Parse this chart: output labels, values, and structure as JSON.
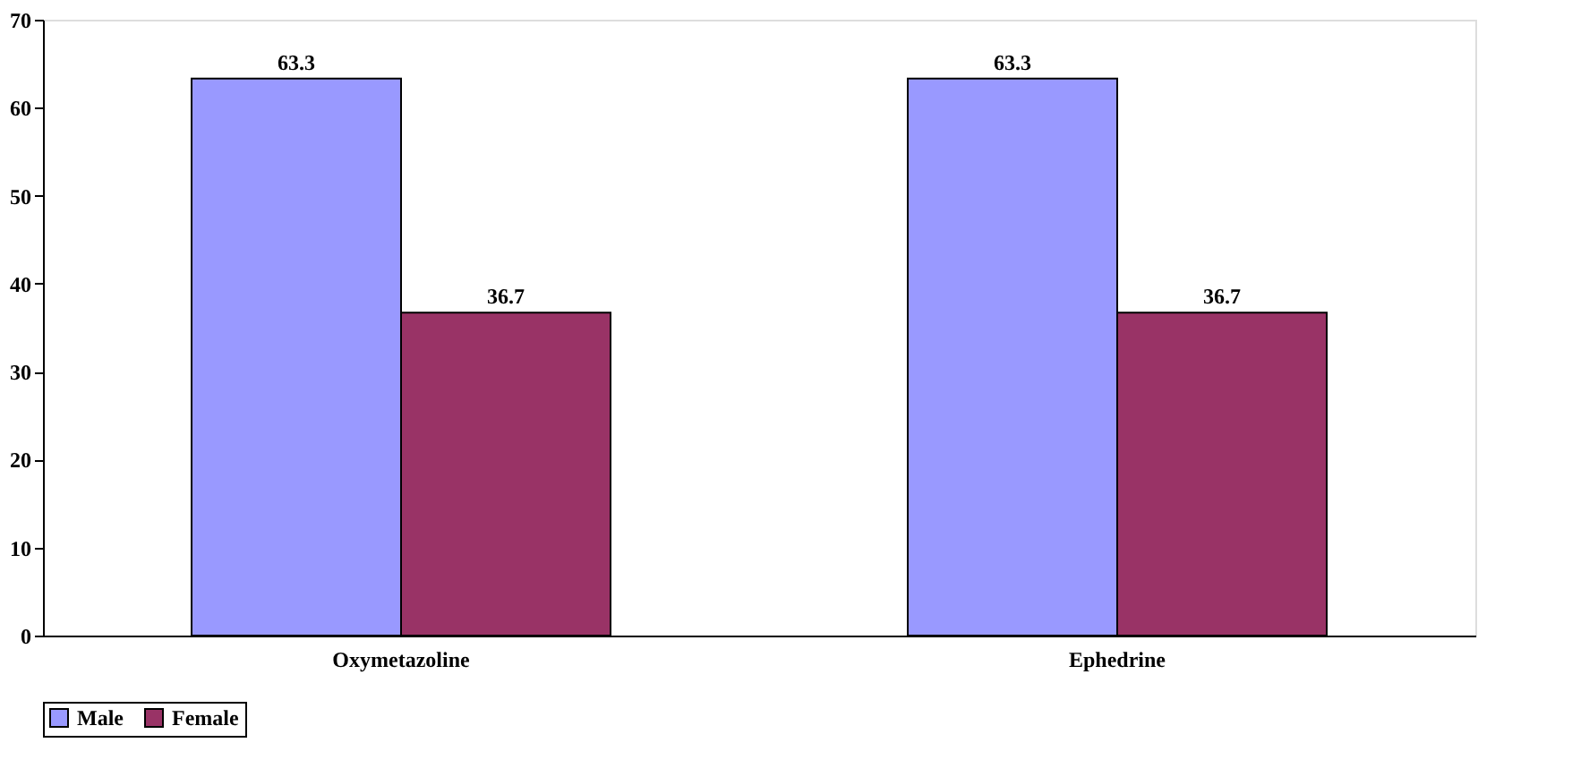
{
  "chart_data": {
    "type": "bar",
    "categories": [
      "Oxymetazoline",
      "Ephedrine"
    ],
    "series": [
      {
        "name": "Male",
        "color": "#9999ff",
        "values": [
          63.3,
          63.3
        ]
      },
      {
        "name": "Female",
        "color": "#993366",
        "values": [
          36.7,
          36.7
        ]
      }
    ],
    "ylim": [
      0,
      70
    ],
    "yticks": [
      0,
      10,
      20,
      30,
      40,
      50,
      60,
      70
    ],
    "grid": false,
    "legend": "bottom",
    "data_labels": true
  }
}
